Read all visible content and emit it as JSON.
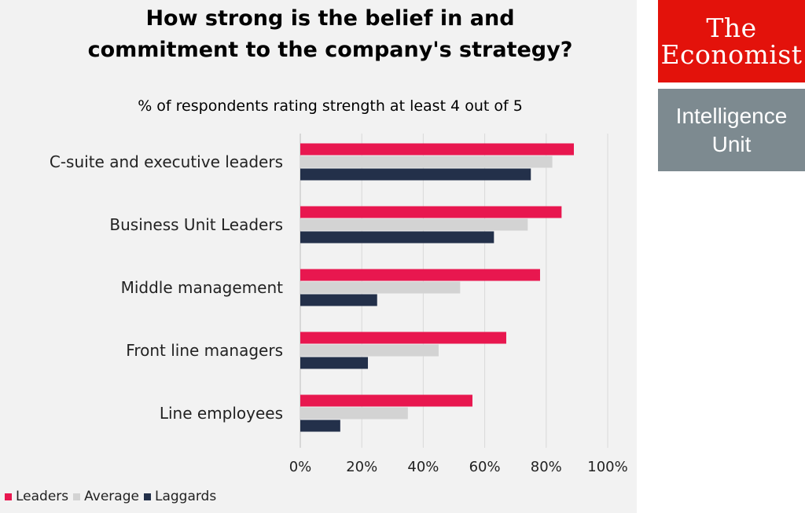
{
  "chart_data": {
    "type": "bar",
    "orientation": "horizontal",
    "title": "How strong is the belief in and commitment to the company's strategy?",
    "subtitle": "% of respondents rating strength at least 4 out of 5",
    "categories": [
      "C-suite and executive leaders",
      "Business Unit Leaders",
      "Middle management",
      "Front line managers",
      "Line employees"
    ],
    "series": [
      {
        "name": "Leaders",
        "color": "#e8174f",
        "values": [
          89,
          85,
          78,
          67,
          56
        ]
      },
      {
        "name": "Average",
        "color": "#d3d3d3",
        "values": [
          82,
          74,
          52,
          45,
          35
        ]
      },
      {
        "name": "Laggards",
        "color": "#23304a",
        "values": [
          75,
          63,
          25,
          22,
          13
        ]
      }
    ],
    "xlim": [
      0,
      100
    ],
    "xticks": [
      "0%",
      "20%",
      "40%",
      "60%",
      "80%",
      "100%"
    ],
    "grid": true,
    "legend_position": "bottom-left"
  },
  "logos": {
    "economist_lines": [
      "The",
      "Economist"
    ],
    "eiu_lines": [
      "Intelligence",
      "Unit"
    ],
    "economist_color": "#e3120b",
    "eiu_color": "#7d8a90"
  }
}
